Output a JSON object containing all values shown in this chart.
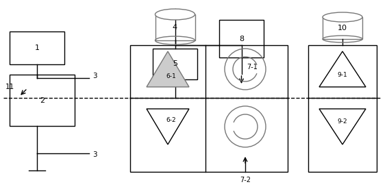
{
  "figsize": [
    5.65,
    2.79
  ],
  "dpi": 100,
  "bg_color": "#ffffff",
  "lc": "#000000",
  "gc": "#777777",
  "lw": 1.0
}
